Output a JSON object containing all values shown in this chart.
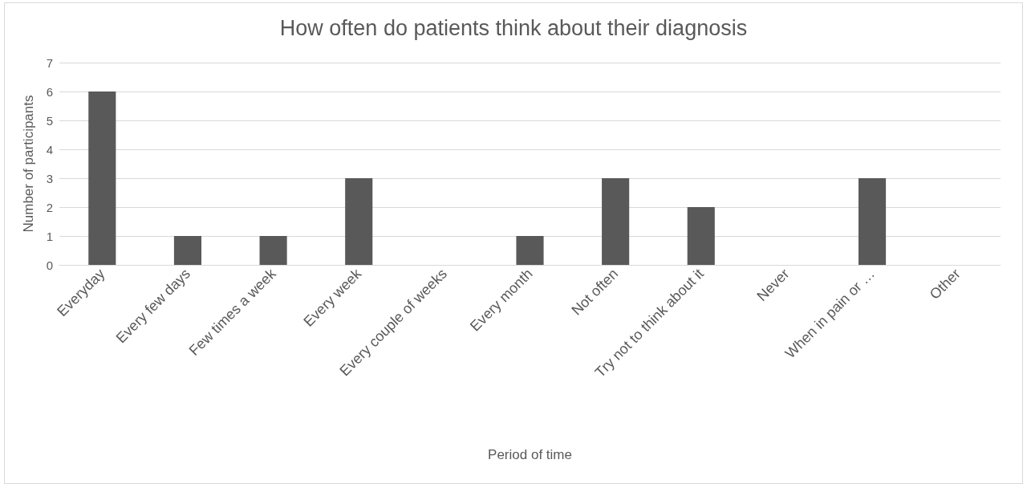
{
  "chart_data": {
    "type": "bar",
    "title": "How often do patients think about their diagnosis",
    "xlabel": "Period of time",
    "ylabel": "Number of participants",
    "categories": [
      "Everyday",
      "Every few days",
      "Few times a week",
      "Every week",
      "Every couple of weeks",
      "Every month",
      "Not often",
      "Try not to think about it",
      "Never",
      "When in pain or …",
      "Other"
    ],
    "values": [
      6,
      1,
      1,
      3,
      0,
      1,
      3,
      2,
      0,
      3,
      0
    ],
    "color": "#595959",
    "ylim": [
      0,
      7
    ],
    "yticks": [
      0,
      1,
      2,
      3,
      4,
      5,
      6,
      7
    ],
    "grid": "y"
  }
}
